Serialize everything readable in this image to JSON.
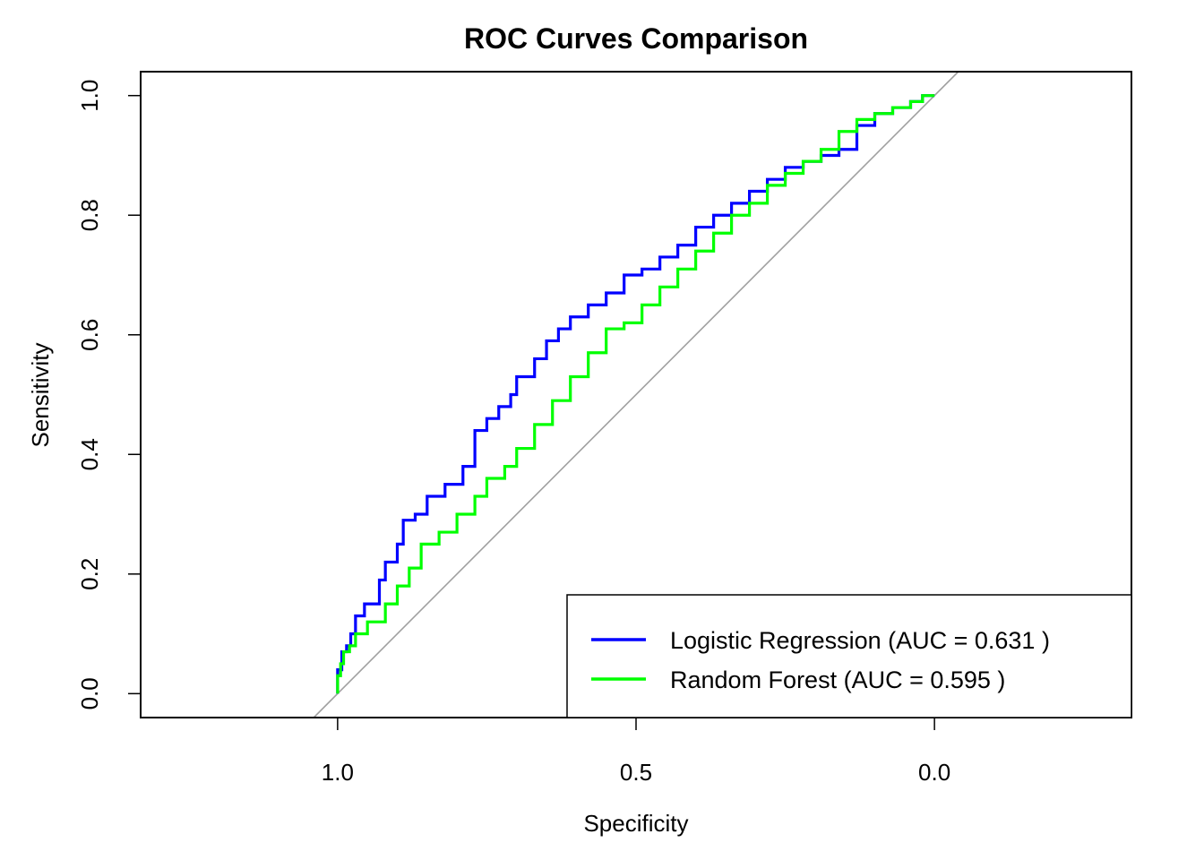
{
  "chart_data": {
    "type": "line",
    "title": "ROC Curves Comparison",
    "xlabel": "Specificity",
    "ylabel": "Sensitivity",
    "xlim": [
      1.33,
      -0.33
    ],
    "ylim": [
      -0.04,
      1.04
    ],
    "x_reversed": true,
    "x_ticks": [
      1.0,
      0.5,
      0.0
    ],
    "x_tick_labels": [
      "1.0",
      "0.5",
      "0.0"
    ],
    "y_ticks": [
      0.0,
      0.2,
      0.4,
      0.6,
      0.8,
      1.0
    ],
    "y_tick_labels": [
      "0.0",
      "0.2",
      "0.4",
      "0.6",
      "0.8",
      "1.0"
    ],
    "reference_line": {
      "from": [
        1,
        0
      ],
      "to": [
        0,
        1
      ],
      "color": "#a0a0a0"
    },
    "legend": {
      "position": "bottom-right",
      "entries": [
        "Logistic Regression (AUC = 0.631 )",
        "Random Forest (AUC = 0.595 )"
      ]
    },
    "series": [
      {
        "name": "Logistic Regression (AUC = 0.631 )",
        "color": "#0000ff",
        "x": [
          1.0,
          0.993,
          0.985,
          0.978,
          0.97,
          0.955,
          0.93,
          0.92,
          0.9,
          0.89,
          0.87,
          0.85,
          0.82,
          0.79,
          0.77,
          0.75,
          0.73,
          0.71,
          0.7,
          0.67,
          0.65,
          0.63,
          0.61,
          0.58,
          0.55,
          0.52,
          0.49,
          0.46,
          0.43,
          0.4,
          0.37,
          0.34,
          0.31,
          0.28,
          0.25,
          0.22,
          0.19,
          0.16,
          0.13,
          0.1,
          0.07,
          0.04,
          0.02,
          0.0
        ],
        "y": [
          0.0,
          0.04,
          0.07,
          0.08,
          0.1,
          0.13,
          0.15,
          0.19,
          0.22,
          0.25,
          0.29,
          0.3,
          0.33,
          0.35,
          0.38,
          0.44,
          0.46,
          0.48,
          0.5,
          0.53,
          0.56,
          0.59,
          0.61,
          0.63,
          0.65,
          0.67,
          0.7,
          0.71,
          0.73,
          0.75,
          0.78,
          0.8,
          0.82,
          0.84,
          0.86,
          0.88,
          0.89,
          0.9,
          0.91,
          0.95,
          0.97,
          0.98,
          0.99,
          1.0
        ]
      },
      {
        "name": "Random Forest (AUC = 0.595 )",
        "color": "#00ff00",
        "x": [
          1.0,
          0.995,
          0.99,
          0.98,
          0.97,
          0.95,
          0.92,
          0.9,
          0.88,
          0.86,
          0.83,
          0.8,
          0.77,
          0.75,
          0.72,
          0.7,
          0.67,
          0.64,
          0.61,
          0.58,
          0.55,
          0.52,
          0.49,
          0.46,
          0.43,
          0.4,
          0.37,
          0.34,
          0.31,
          0.28,
          0.25,
          0.22,
          0.19,
          0.16,
          0.13,
          0.1,
          0.07,
          0.04,
          0.02,
          0.0
        ],
        "y": [
          0.0,
          0.03,
          0.05,
          0.07,
          0.08,
          0.1,
          0.12,
          0.15,
          0.18,
          0.21,
          0.25,
          0.27,
          0.3,
          0.33,
          0.36,
          0.38,
          0.41,
          0.45,
          0.49,
          0.53,
          0.57,
          0.61,
          0.62,
          0.65,
          0.68,
          0.71,
          0.74,
          0.77,
          0.8,
          0.82,
          0.85,
          0.87,
          0.89,
          0.91,
          0.94,
          0.96,
          0.97,
          0.98,
          0.99,
          1.0
        ]
      }
    ]
  }
}
